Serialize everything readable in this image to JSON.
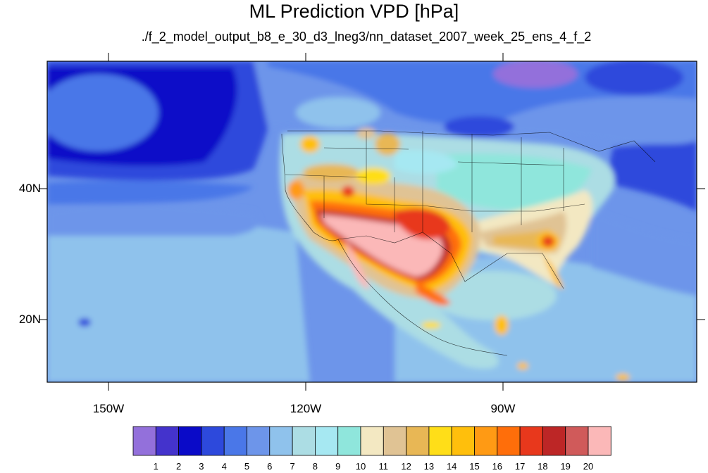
{
  "title": "ML Prediction VPD [hPa]",
  "subtitle": "./f_2_model_output_b8_e_30_d3_lneg3/nn_dataset_2007_week_25_ens_4_f_2",
  "lon_labels": [
    "150W",
    "120W",
    "90W"
  ],
  "lat_labels": [
    "40N",
    "20N"
  ],
  "colorbar": {
    "colors": [
      "#9370db",
      "#4433cc",
      "#0a0ac8",
      "#2d49dc",
      "#4a77e8",
      "#6d95ea",
      "#8fc2ec",
      "#acdde4",
      "#a6e8f2",
      "#8fe6dc",
      "#f3e8c2",
      "#e0c394",
      "#e8b755",
      "#ffde18",
      "#ffbf0c",
      "#ff9a14",
      "#ff6e0a",
      "#e8381c",
      "#bd2626",
      "#d05a5a",
      "#fbb8b8"
    ],
    "labels": [
      "1",
      "2",
      "3",
      "4",
      "5",
      "6",
      "7",
      "8",
      "9",
      "10",
      "11",
      "12",
      "13",
      "14",
      "15",
      "16",
      "17",
      "18",
      "19",
      "20"
    ]
  }
}
